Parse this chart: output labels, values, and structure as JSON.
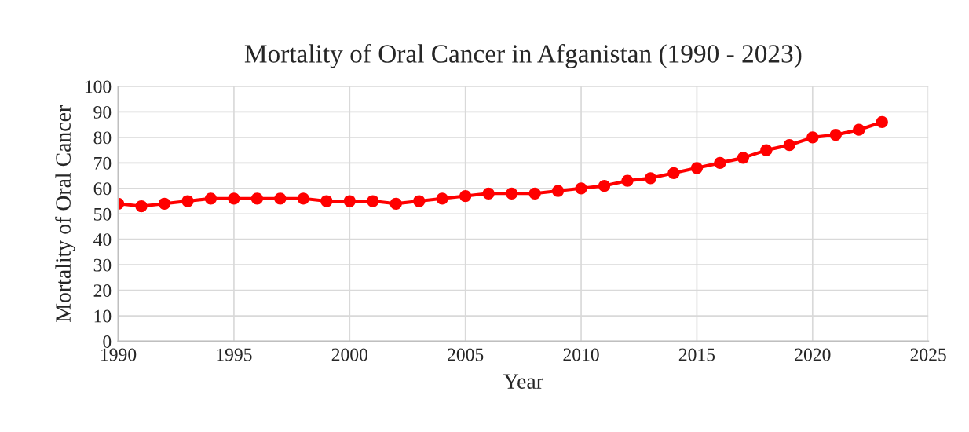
{
  "chart_data": {
    "type": "line",
    "title": "Mortality of Oral Cancer in Afganistan (1990 - 2023)",
    "xlabel": "Year",
    "ylabel": "Mortality of Oral Cancer",
    "x": [
      1990,
      1991,
      1992,
      1993,
      1994,
      1995,
      1996,
      1997,
      1998,
      1999,
      2000,
      2001,
      2002,
      2003,
      2004,
      2005,
      2006,
      2007,
      2008,
      2009,
      2010,
      2011,
      2012,
      2013,
      2014,
      2015,
      2016,
      2017,
      2018,
      2019,
      2020,
      2021,
      2022,
      2023
    ],
    "series": [
      {
        "color": "#ff0000",
        "values": [
          54,
          53,
          54,
          55,
          56,
          56,
          56,
          56,
          56,
          55,
          55,
          55,
          54,
          55,
          56,
          57,
          58,
          58,
          58,
          59,
          60,
          61,
          63,
          64,
          66,
          68,
          70,
          72,
          75,
          77,
          80,
          81,
          83,
          86
        ]
      }
    ],
    "xlim": [
      1990,
      2025
    ],
    "xticks": [
      1990,
      1995,
      2000,
      2005,
      2010,
      2015,
      2020,
      2025
    ],
    "ylim": [
      0,
      100
    ],
    "yticks": [
      0,
      10,
      20,
      30,
      40,
      50,
      60,
      70,
      80,
      90,
      100
    ],
    "grid": true,
    "marker": "circle",
    "line_style": "solid"
  }
}
